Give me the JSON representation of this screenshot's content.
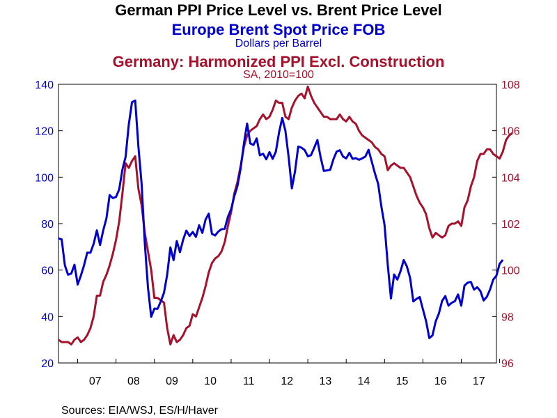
{
  "chart_data": {
    "type": "line",
    "title": "German PPI Price Level vs. Brent Price Level",
    "source": "Sources:  EIA/WSJ, ES/H/Haver",
    "x_tick_labels": [
      "07",
      "08",
      "09",
      "10",
      "11",
      "12",
      "13",
      "14",
      "15",
      "16",
      "17"
    ],
    "x_range": [
      "2006-07",
      "2017-12"
    ],
    "grid": false,
    "series": [
      {
        "name": "Europe Brent Spot Price FOB",
        "units": "Dollars per Barrel",
        "color": "#0000cc",
        "axis": "left",
        "ylim": [
          20,
          140
        ],
        "y_ticks": [
          20,
          40,
          60,
          80,
          100,
          120,
          140
        ],
        "start": "2006-07",
        "frequency": "monthly",
        "values": [
          73.7,
          73.2,
          62.0,
          58.0,
          58.5,
          62.3,
          53.8,
          57.6,
          62.1,
          67.5,
          67.5,
          71.3,
          77.1,
          70.8,
          77.1,
          82.3,
          92.3,
          91.0,
          91.5,
          94.8,
          103.3,
          108.8,
          122.8,
          132.3,
          133.0,
          113.2,
          97.2,
          71.6,
          52.4,
          39.9,
          43.4,
          43.3,
          46.5,
          50.2,
          58.0,
          69.8,
          64.3,
          72.5,
          67.7,
          73.1,
          77.0,
          74.7,
          76.4,
          74.3,
          79.3,
          76.0,
          81.7,
          84.3,
          75.6,
          74.9,
          76.6,
          77.6,
          77.8,
          82.9,
          86.2,
          91.8,
          96.3,
          103.9,
          114.4,
          123.1,
          114.5,
          113.9,
          116.7,
          109.4,
          110.1,
          107.7,
          110.8,
          107.9,
          111.0,
          119.3,
          125.5,
          119.8,
          108.6,
          95.2,
          102.6,
          113.2,
          112.7,
          111.7,
          109.0,
          109.5,
          112.7,
          116.0,
          108.6,
          102.7,
          102.9,
          103.2,
          107.7,
          111.0,
          111.6,
          108.9,
          108.1,
          110.5,
          107.9,
          108.2,
          107.5,
          108.1,
          108.9,
          111.8,
          106.7,
          101.6,
          97.1,
          87.4,
          79.4,
          62.3,
          47.8,
          58.1,
          55.9,
          59.5,
          64.3,
          61.5,
          56.6,
          46.5,
          47.6,
          48.4,
          43.1,
          38.0,
          30.7,
          31.9,
          37.9,
          41.3,
          46.7,
          48.8,
          44.7,
          45.9,
          46.6,
          49.5,
          44.7,
          53.3,
          54.6,
          54.9,
          51.6,
          52.6,
          50.9,
          46.9,
          48.5,
          51.6,
          55.9,
          57.6,
          62.7,
          64.4
        ]
      },
      {
        "name": "Germany: Harmonized PPI Excl. Construction",
        "units": "SA, 2010=100",
        "color": "#a6112b",
        "axis": "right",
        "ylim": [
          96,
          108
        ],
        "y_ticks": [
          96,
          98,
          100,
          102,
          104,
          106,
          108
        ],
        "start": "2006-07",
        "frequency": "monthly",
        "values": [
          97.0,
          96.9,
          96.9,
          96.9,
          96.8,
          97.0,
          97.1,
          96.9,
          97.0,
          97.2,
          97.5,
          98.0,
          98.9,
          98.9,
          99.5,
          99.8,
          100.2,
          100.7,
          101.3,
          102.1,
          103.3,
          104.6,
          104.4,
          104.7,
          104.9,
          103.5,
          102.8,
          101.6,
          100.8,
          100.0,
          98.8,
          98.8,
          98.7,
          98.6,
          97.5,
          96.8,
          97.2,
          96.9,
          97.0,
          97.2,
          97.5,
          97.6,
          98.1,
          98.0,
          98.4,
          98.8,
          99.3,
          99.9,
          100.3,
          100.5,
          100.6,
          100.8,
          101.2,
          101.9,
          102.5,
          103.3,
          103.8,
          104.5,
          105.3,
          105.8,
          106.0,
          106.1,
          106.2,
          106.5,
          106.7,
          106.5,
          106.6,
          106.9,
          107.3,
          107.2,
          107.2,
          106.6,
          106.5,
          107.0,
          107.3,
          107.5,
          107.6,
          107.4,
          107.9,
          107.5,
          107.2,
          107.0,
          106.8,
          106.6,
          106.6,
          106.5,
          106.5,
          106.5,
          106.7,
          106.5,
          106.4,
          106.6,
          106.4,
          106.3,
          106.0,
          105.8,
          105.7,
          105.6,
          105.5,
          105.3,
          105.2,
          105.0,
          104.9,
          104.3,
          104.5,
          104.6,
          104.5,
          104.4,
          104.4,
          104.2,
          104.0,
          103.6,
          103.2,
          102.9,
          102.7,
          102.4,
          101.8,
          101.4,
          101.6,
          101.5,
          101.4,
          101.5,
          101.9,
          102.0,
          102.0,
          102.1,
          101.9,
          102.7,
          103.0,
          103.6,
          104.0,
          104.7,
          105.0,
          105.0,
          105.2,
          105.2,
          105.0,
          104.9,
          104.8,
          105.1,
          105.6,
          105.8,
          105.9
        ]
      }
    ]
  }
}
